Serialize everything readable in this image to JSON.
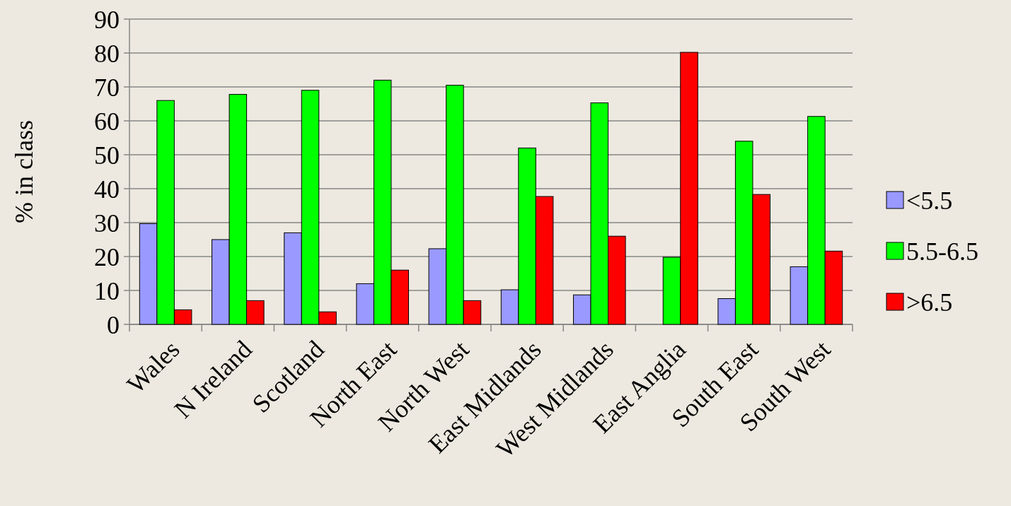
{
  "chart_data": {
    "type": "bar",
    "ylabel": "% in class",
    "categories": [
      "Wales",
      "N Ireland",
      "Scotland",
      "North East",
      "North West",
      "East Midlands",
      "West Midlands",
      "East Anglia",
      "South East",
      "South West"
    ],
    "series": [
      {
        "name": "<5.5",
        "color": "#9999ff",
        "values": [
          29.7,
          25,
          27,
          12,
          22.3,
          10.2,
          8.7,
          null,
          7.6,
          17
        ]
      },
      {
        "name": "5.5-6.5",
        "color": "#00ff00",
        "values": [
          66,
          67.8,
          69,
          72,
          70.5,
          52,
          65.3,
          19.8,
          54,
          61.3
        ]
      },
      {
        "name": ">6.5",
        "color": "#ff0000",
        "values": [
          4.3,
          7,
          3.7,
          16,
          7,
          37.7,
          26,
          80.2,
          38.3,
          21.6
        ]
      }
    ],
    "ylim": [
      0,
      90
    ],
    "yticks": [
      0,
      10,
      20,
      30,
      40,
      50,
      60,
      70,
      80,
      90
    ],
    "grid": "y",
    "legend": "right"
  }
}
